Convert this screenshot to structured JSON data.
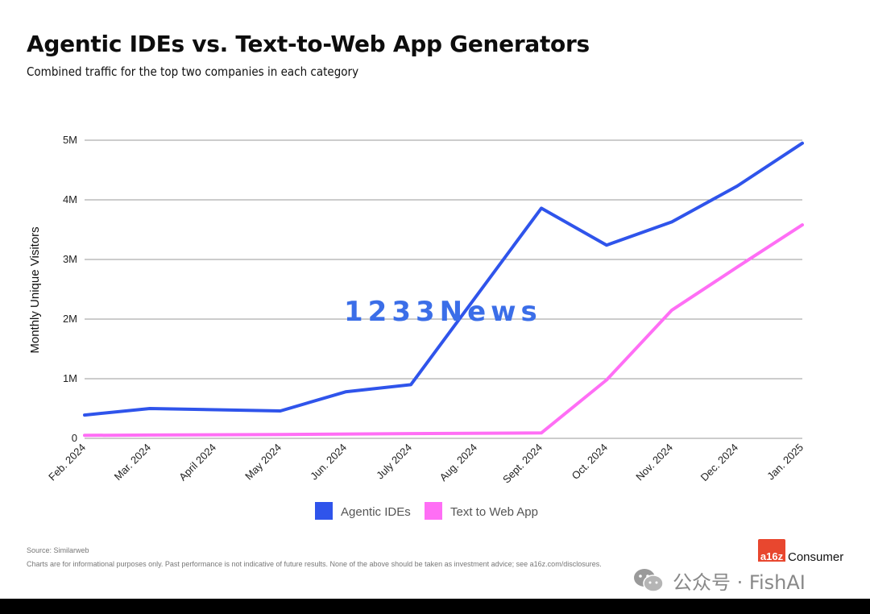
{
  "title": "Agentic IDEs vs. Text-to-Web App Generators",
  "subtitle": "Combined traffic for the top two companies in each category",
  "chart_data": {
    "type": "line",
    "ylabel": "Monthly Unique Visitors",
    "xlabel": "",
    "categories": [
      "Feb. 2024",
      "Mar. 2024",
      "April 2024",
      "May 2024",
      "Jun. 2024",
      "July 2024",
      "Aug. 2024",
      "Sept. 2024",
      "Oct. 2024",
      "Nov. 2024",
      "Dec. 2024",
      "Jan. 2025"
    ],
    "y_ticks": [
      0,
      1000000,
      2000000,
      3000000,
      4000000,
      5000000
    ],
    "y_tick_labels": [
      "0",
      "1M",
      "2M",
      "3M",
      "4M",
      "5M"
    ],
    "ylim": [
      0,
      5000000
    ],
    "grid": true,
    "legend_position": "bottom-center",
    "series": [
      {
        "name": "Agentic IDEs",
        "color": "#2f54eb",
        "values": [
          390000,
          500000,
          null,
          460000,
          780000,
          900000,
          null,
          3860000,
          3240000,
          3630000,
          4230000,
          4950000
        ]
      },
      {
        "name": "Text to Web App",
        "color": "#ff6ef5",
        "values": [
          50000,
          55000,
          null,
          65000,
          null,
          80000,
          null,
          90000,
          980000,
          2150000,
          2870000,
          3580000
        ]
      }
    ]
  },
  "watermark": "1233News",
  "footer": {
    "source": "Source: Similarweb",
    "disclaimer": "Charts are for informational purposes only. Past performance is not indicative of future results. None of the above should be taken as investment advice; see a16z.com/disclosures."
  },
  "brand": {
    "logo": "a16z",
    "name": "Consumer"
  },
  "wechat": {
    "text": "公众号 · FishAI",
    "icon": "wechat-icon"
  }
}
